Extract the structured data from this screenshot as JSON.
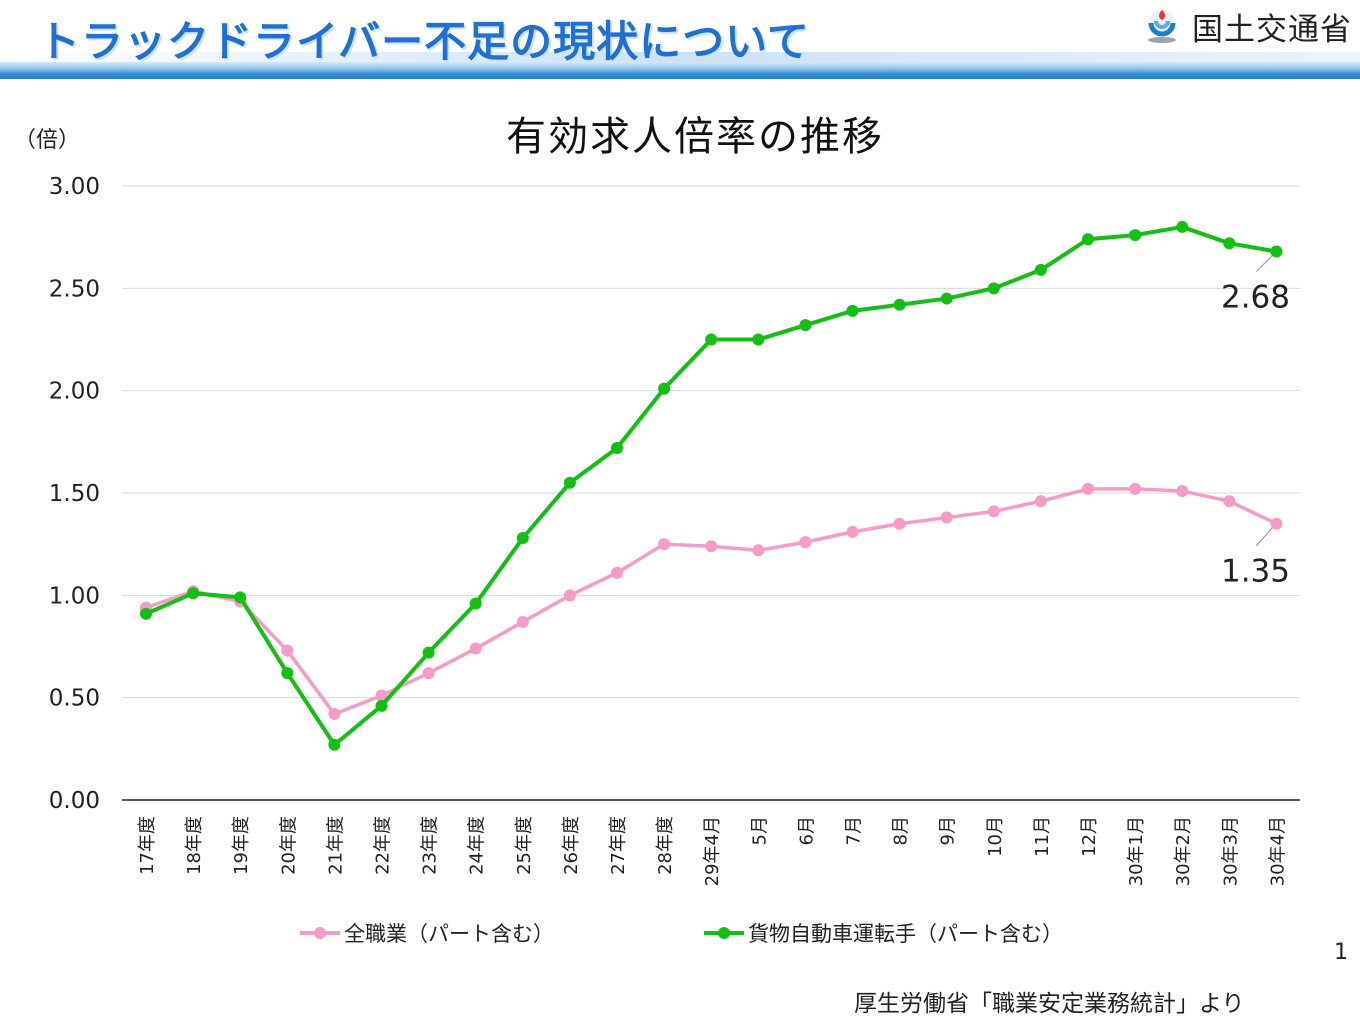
{
  "slide": {
    "title": "トラックドライバー不足の現状について",
    "ministry": "国土交通省",
    "page_number": "1",
    "source": "厚生労働省「職業安定業務統計」より"
  },
  "colors": {
    "title": "#1f6fd6",
    "all_jobs": "#f59bc8",
    "truck": "#12c012"
  },
  "chart_data": {
    "type": "line",
    "title": "有効求人倍率の推移",
    "ylabel": "（倍）",
    "xlabel": "",
    "ylim": [
      0,
      3
    ],
    "yticks": [
      "0.00",
      "0.50",
      "1.00",
      "1.50",
      "2.00",
      "2.50",
      "3.00"
    ],
    "grid": true,
    "legend_position": "bottom",
    "categories": [
      "17年度",
      "18年度",
      "19年度",
      "20年度",
      "21年度",
      "22年度",
      "23年度",
      "24年度",
      "25年度",
      "26年度",
      "27年度",
      "28年度",
      "29年4月",
      "5月",
      "6月",
      "7月",
      "8月",
      "9月",
      "10月",
      "11月",
      "12月",
      "30年1月",
      "30年2月",
      "30年3月",
      "30年4月"
    ],
    "series": [
      {
        "name": "全職業（パート含む）",
        "color": "#f59bc8",
        "values": [
          0.94,
          1.02,
          0.97,
          0.73,
          0.42,
          0.51,
          0.62,
          0.74,
          0.87,
          1.0,
          1.11,
          1.25,
          1.24,
          1.22,
          1.26,
          1.31,
          1.35,
          1.38,
          1.41,
          1.46,
          1.52,
          1.52,
          1.51,
          1.46,
          1.35
        ],
        "end_label": "1.35"
      },
      {
        "name": "貨物自動車運転手（パート含む）",
        "color": "#12c012",
        "values": [
          0.91,
          1.01,
          0.99,
          0.62,
          0.27,
          0.46,
          0.72,
          0.96,
          1.28,
          1.55,
          1.72,
          2.01,
          2.25,
          2.25,
          2.32,
          2.39,
          2.42,
          2.45,
          2.5,
          2.59,
          2.74,
          2.76,
          2.8,
          2.72,
          2.68
        ],
        "end_label": "2.68"
      }
    ]
  }
}
